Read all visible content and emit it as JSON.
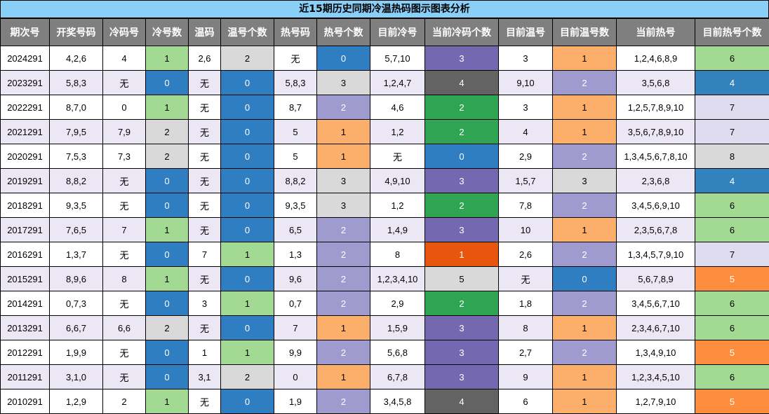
{
  "title": "近15期历史同期冷温热码图示图表分析",
  "headers": [
    "期次号",
    "开奖号码",
    "冷码号",
    "冷号数",
    "温码",
    "温号个数",
    "热号码",
    "热号个数",
    "目前冷号",
    "当前冷码个数",
    "目前温号",
    "目前温号数",
    "当前热号",
    "目前热号个数"
  ],
  "colors": {
    "green": "#a2d993",
    "blue": "#2e7ec1",
    "gray": "#d9d9d9",
    "lavender": "#9f9bcf",
    "orange": "#fcae6b",
    "purple": "#7469b0",
    "dark": "#636363",
    "dark_green": "#2fa553",
    "red_orange": "#e8550f",
    "light_lavender": "#dedcee",
    "deep_orange": "#fd8d3c"
  },
  "rows": [
    {
      "cells": [
        "2024291",
        "4,2,6",
        "4",
        "1",
        "2,6",
        "2",
        "无",
        "0",
        "5,7,10",
        "3",
        "3",
        "1",
        "1,2,4,6,8,9",
        "6"
      ],
      "styles": [
        "",
        "",
        "",
        "green",
        "",
        "gray",
        "",
        "blue",
        "",
        "purple",
        "",
        "orange",
        "",
        "green"
      ]
    },
    {
      "cells": [
        "2023291",
        "5,8,3",
        "无",
        "0",
        "无",
        "0",
        "5,8,3",
        "3",
        "1,2,4,7",
        "4",
        "9,10",
        "2",
        "3,5,6,8",
        "4"
      ],
      "styles": [
        "",
        "",
        "",
        "blue",
        "",
        "blue",
        "",
        "gray",
        "",
        "dark",
        "",
        "lav",
        "",
        "blue2"
      ]
    },
    {
      "cells": [
        "2022291",
        "8,7,0",
        "0",
        "1",
        "无",
        "0",
        "8,7",
        "2",
        "4,6",
        "2",
        "3",
        "1",
        "1,2,5,7,8,9,10",
        "7"
      ],
      "styles": [
        "",
        "",
        "",
        "green",
        "",
        "blue",
        "",
        "lav",
        "",
        "dgreen",
        "",
        "orange",
        "",
        "lightlav"
      ]
    },
    {
      "cells": [
        "2021291",
        "7,9,5",
        "7,9",
        "2",
        "无",
        "0",
        "5",
        "1",
        "1,2",
        "2",
        "4",
        "1",
        "3,5,6,7,8,9,10",
        "7"
      ],
      "styles": [
        "",
        "",
        "",
        "gray",
        "",
        "blue",
        "",
        "orange",
        "",
        "dgreen",
        "",
        "orange",
        "",
        "lightlav"
      ]
    },
    {
      "cells": [
        "2020291",
        "7,5,3",
        "7,3",
        "2",
        "无",
        "0",
        "5",
        "1",
        "无",
        "0",
        "2,9",
        "2",
        "1,3,4,5,6,7,8,10",
        "8"
      ],
      "styles": [
        "",
        "",
        "",
        "gray",
        "",
        "blue",
        "",
        "orange",
        "",
        "blue",
        "",
        "lav",
        "",
        "gray"
      ]
    },
    {
      "cells": [
        "2019291",
        "8,8,2",
        "无",
        "0",
        "无",
        "0",
        "8,8,2",
        "3",
        "4,9,10",
        "3",
        "1,5,7",
        "3",
        "2,3,6,8",
        "4"
      ],
      "styles": [
        "",
        "",
        "",
        "blue",
        "",
        "blue",
        "",
        "gray",
        "",
        "purple",
        "",
        "gray",
        "",
        "blue2"
      ]
    },
    {
      "cells": [
        "2018291",
        "9,3,5",
        "无",
        "0",
        "无",
        "0",
        "9,3,5",
        "3",
        "1,2",
        "2",
        "7,8",
        "2",
        "3,4,5,6,9,10",
        "6"
      ],
      "styles": [
        "",
        "",
        "",
        "blue",
        "",
        "blue",
        "",
        "gray",
        "",
        "dgreen",
        "",
        "lav",
        "",
        "green"
      ]
    },
    {
      "cells": [
        "2017291",
        "7,6,5",
        "7",
        "1",
        "无",
        "0",
        "6,5",
        "2",
        "1,4,9",
        "3",
        "10",
        "1",
        "2,3,5,6,7,8",
        "6"
      ],
      "styles": [
        "",
        "",
        "",
        "green",
        "",
        "blue",
        "",
        "lav",
        "",
        "purple",
        "",
        "orange",
        "",
        "green"
      ]
    },
    {
      "cells": [
        "2016291",
        "1,3,7",
        "无",
        "0",
        "7",
        "1",
        "1,3",
        "2",
        "8",
        "1",
        "2,6",
        "2",
        "1,3,4,5,7,9,10",
        "7"
      ],
      "styles": [
        "",
        "",
        "",
        "blue",
        "",
        "green",
        "",
        "lav",
        "",
        "red",
        "",
        "lav",
        "",
        "lightlav"
      ]
    },
    {
      "cells": [
        "2015291",
        "8,9,6",
        "8",
        "1",
        "无",
        "0",
        "9,6",
        "2",
        "1,2,3,4,10",
        "5",
        "无",
        "0",
        "5,6,7,8,9",
        "5"
      ],
      "styles": [
        "",
        "",
        "",
        "green",
        "",
        "blue",
        "",
        "lav",
        "",
        "gray",
        "",
        "blue",
        "",
        "orange2"
      ]
    },
    {
      "cells": [
        "2014291",
        "0,7,3",
        "无",
        "0",
        "3",
        "1",
        "0,7",
        "2",
        "2,9",
        "2",
        "1,8",
        "2",
        "3,4,5,6,7,10",
        "6"
      ],
      "styles": [
        "",
        "",
        "",
        "blue",
        "",
        "green",
        "",
        "lav",
        "",
        "dgreen",
        "",
        "lav",
        "",
        "green"
      ]
    },
    {
      "cells": [
        "2013291",
        "6,6,7",
        "6,6",
        "2",
        "无",
        "0",
        "7",
        "1",
        "1,5,9",
        "3",
        "8",
        "1",
        "2,3,4,6,7,10",
        "6"
      ],
      "styles": [
        "",
        "",
        "",
        "gray",
        "",
        "blue",
        "",
        "orange",
        "",
        "purple",
        "",
        "orange",
        "",
        "green"
      ]
    },
    {
      "cells": [
        "2012291",
        "1,9,9",
        "无",
        "0",
        "1",
        "1",
        "9,9",
        "2",
        "5,6,8",
        "3",
        "2,7",
        "2",
        "1,3,4,9,10",
        "5"
      ],
      "styles": [
        "",
        "",
        "",
        "blue",
        "",
        "green",
        "",
        "lav",
        "",
        "purple",
        "",
        "lav",
        "",
        "orange2"
      ]
    },
    {
      "cells": [
        "2011291",
        "3,1,0",
        "无",
        "0",
        "3,1",
        "2",
        "0",
        "1",
        "6,7,8",
        "3",
        "9",
        "1",
        "1,2,3,4,5,10",
        "6"
      ],
      "styles": [
        "",
        "",
        "",
        "blue",
        "",
        "gray",
        "",
        "orange",
        "",
        "purple",
        "",
        "orange",
        "",
        "green"
      ]
    },
    {
      "cells": [
        "2010291",
        "1,2,9",
        "2",
        "1",
        "无",
        "0",
        "1,9",
        "2",
        "3,4,5,8",
        "4",
        "6",
        "1",
        "1,2,7,9,10",
        "5"
      ],
      "styles": [
        "",
        "",
        "",
        "green",
        "",
        "blue",
        "",
        "lav",
        "",
        "dark",
        "",
        "orange",
        "",
        "orange2"
      ]
    }
  ]
}
